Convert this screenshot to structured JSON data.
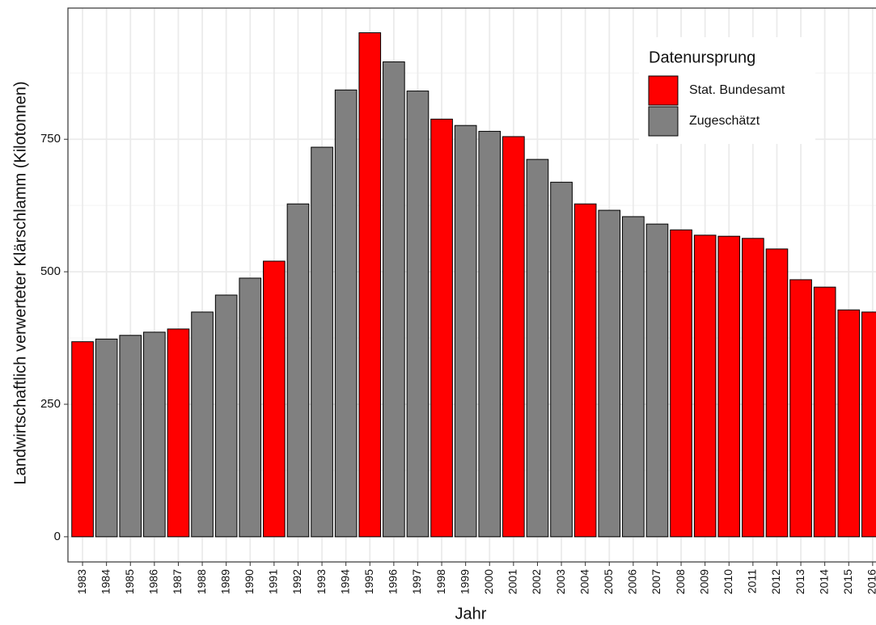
{
  "chart_data": {
    "type": "bar",
    "x_label": "Jahr",
    "y_label": "Landwirtschaftlich verwerteter Klärschlamm (Kilotonnen)",
    "categories": [
      "1983",
      "1984",
      "1985",
      "1986",
      "1987",
      "1988",
      "1989",
      "1990",
      "1991",
      "1992",
      "1993",
      "1994",
      "1995",
      "1996",
      "1997",
      "1998",
      "1999",
      "2000",
      "2001",
      "2002",
      "2003",
      "2004",
      "2005",
      "2006",
      "2007",
      "2008",
      "2009",
      "2010",
      "2011",
      "2012",
      "2013",
      "2014",
      "2015",
      "2016"
    ],
    "series": [
      {
        "name": "Stat. Bundesamt",
        "color": "#ff0000",
        "values": [
          368,
          null,
          null,
          null,
          392,
          null,
          null,
          null,
          520,
          null,
          null,
          null,
          951,
          null,
          null,
          788,
          null,
          null,
          755,
          null,
          null,
          628,
          null,
          null,
          null,
          579,
          569,
          567,
          563,
          543,
          485,
          471,
          428,
          424
        ]
      },
      {
        "name": "Zugeschätzt",
        "color": "#808080",
        "values": [
          null,
          373,
          380,
          386,
          null,
          424,
          456,
          488,
          null,
          628,
          735,
          843,
          null,
          896,
          841,
          null,
          776,
          765,
          null,
          712,
          669,
          null,
          616,
          604,
          590,
          null,
          null,
          null,
          null,
          null,
          null,
          null,
          null,
          null
        ]
      }
    ],
    "legend_title": "Datenursprung",
    "ylim": [
      -47.5,
      997.5
    ],
    "yticks": [
      0,
      250,
      500,
      750
    ],
    "grid": true
  }
}
